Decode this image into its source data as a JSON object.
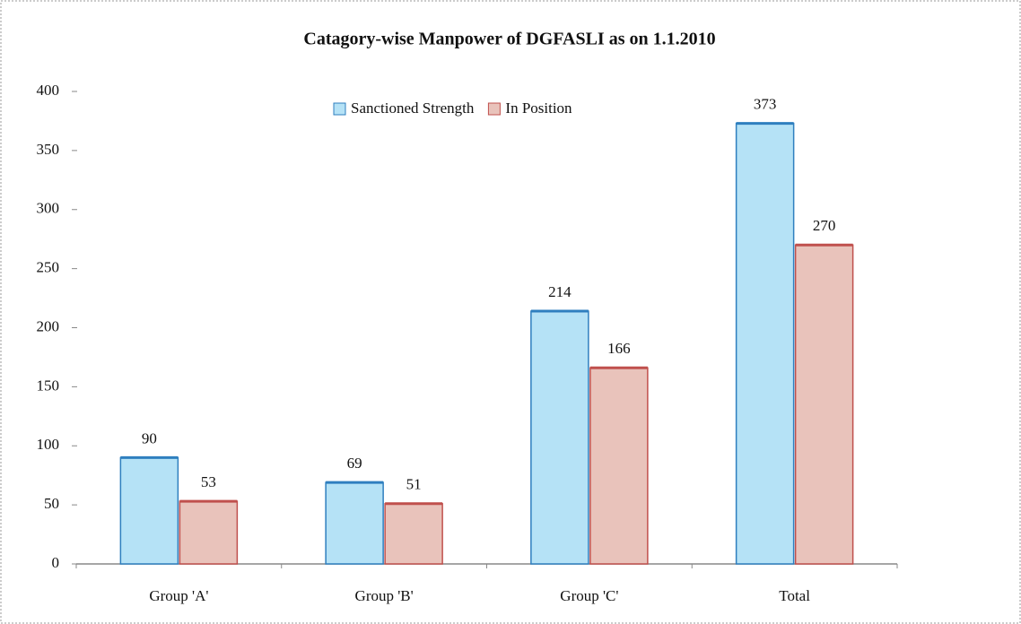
{
  "chart_data": {
    "type": "bar",
    "title": "Catagory-wise Manpower of DGFASLI as on 1.1.2010",
    "categories": [
      "Group 'A'",
      "Group 'B'",
      "Group 'C'",
      "Total"
    ],
    "series": [
      {
        "name": "Sanctioned Strength",
        "color": "#b5e2f6",
        "stroke": "#2f7fbf",
        "values": [
          90,
          69,
          214,
          373
        ]
      },
      {
        "name": "In Position",
        "color": "#e9c3bb",
        "stroke": "#c0504d",
        "values": [
          53,
          51,
          166,
          270
        ]
      }
    ],
    "ylim": [
      0,
      400
    ],
    "yticks": [
      0,
      50,
      100,
      150,
      200,
      250,
      300,
      350,
      400
    ],
    "grid": false,
    "legend": "top"
  }
}
